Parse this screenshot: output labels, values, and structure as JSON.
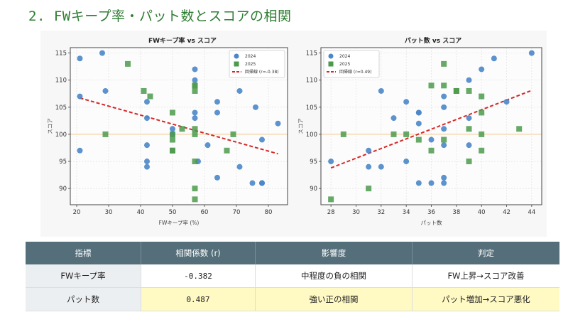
{
  "heading": "2. FWキープ率・パット数とスコアの相関",
  "chart_data": [
    {
      "type": "scatter",
      "title": "FWキープ率 vs スコア",
      "xlabel": "FWキープ率 (%)",
      "ylabel": "スコア",
      "xlim": [
        18,
        86
      ],
      "ylim": [
        87,
        116
      ],
      "xticks": [
        20,
        30,
        40,
        50,
        60,
        70,
        80
      ],
      "yticks": [
        90,
        95,
        100,
        105,
        110,
        115
      ],
      "grid": true,
      "reference_line_y": 100,
      "legend_position": "top-right",
      "series": [
        {
          "name": "2024",
          "marker": "circle",
          "color": "#4a86c8",
          "points": [
            [
              21,
              114
            ],
            [
              28,
              115
            ],
            [
              21,
              107
            ],
            [
              29,
              108
            ],
            [
              42,
              106
            ],
            [
              42,
              103
            ],
            [
              42,
              98
            ],
            [
              42,
              95
            ],
            [
              42,
              94
            ],
            [
              21,
              97
            ],
            [
              50,
              101
            ],
            [
              50,
              100
            ],
            [
              57,
              112
            ],
            [
              57,
              110
            ],
            [
              57,
              104
            ],
            [
              57,
              103
            ],
            [
              58,
              95
            ],
            [
              61,
              98
            ],
            [
              64,
              106
            ],
            [
              64,
              104
            ],
            [
              64,
              92
            ],
            [
              71,
              108
            ],
            [
              71,
              94
            ],
            [
              76,
              105
            ],
            [
              75,
              91
            ],
            [
              78,
              91
            ],
            [
              78,
              91
            ],
            [
              78,
              99
            ],
            [
              83,
              102
            ]
          ]
        },
        {
          "name": "2025",
          "marker": "square",
          "color": "#4c9a4c",
          "points": [
            [
              36,
              113
            ],
            [
              41,
              108
            ],
            [
              43,
              107
            ],
            [
              29,
              100
            ],
            [
              50,
              104
            ],
            [
              50,
              100
            ],
            [
              50,
              99
            ],
            [
              50,
              97
            ],
            [
              50,
              97
            ],
            [
              53,
              101
            ],
            [
              57,
              109
            ],
            [
              57,
              109
            ],
            [
              57,
              108
            ],
            [
              57,
              101
            ],
            [
              57,
              100
            ],
            [
              57,
              95
            ],
            [
              57,
              90
            ],
            [
              57,
              88
            ],
            [
              67,
              97
            ],
            [
              69,
              100
            ]
          ]
        }
      ],
      "regression": {
        "label": "回帰線 (r=-0.38)",
        "color": "#d62728",
        "x": [
          21,
          83
        ],
        "y": [
          106.7,
          96.4
        ]
      }
    },
    {
      "type": "scatter",
      "title": "パット数 vs スコア",
      "xlabel": "パット数",
      "ylabel": "スコア",
      "xlim": [
        27.2,
        44.8
      ],
      "ylim": [
        87,
        116
      ],
      "xticks": [
        28,
        30,
        32,
        34,
        36,
        38,
        40,
        42,
        44
      ],
      "yticks": [
        90,
        95,
        100,
        105,
        110,
        115
      ],
      "grid": true,
      "reference_line_y": 100,
      "legend_position": "top-left",
      "series": [
        {
          "name": "2024",
          "marker": "circle",
          "color": "#4a86c8",
          "points": [
            [
              28,
              95
            ],
            [
              31,
              97
            ],
            [
              31,
              94
            ],
            [
              32,
              94
            ],
            [
              32,
              108
            ],
            [
              33,
              103
            ],
            [
              34,
              106
            ],
            [
              34,
              95
            ],
            [
              35,
              104
            ],
            [
              35,
              104
            ],
            [
              35,
              102
            ],
            [
              35,
              91
            ],
            [
              36,
              99
            ],
            [
              36,
              91
            ],
            [
              37,
              107
            ],
            [
              37,
              105
            ],
            [
              37,
              101
            ],
            [
              37,
              98
            ],
            [
              37,
              92
            ],
            [
              37,
              91
            ],
            [
              39,
              110
            ],
            [
              39,
              103
            ],
            [
              39,
              98
            ],
            [
              40,
              112
            ],
            [
              41,
              114
            ],
            [
              42,
              106
            ],
            [
              44,
              115
            ]
          ]
        },
        {
          "name": "2025",
          "marker": "square",
          "color": "#4c9a4c",
          "points": [
            [
              28,
              88
            ],
            [
              29,
              100
            ],
            [
              31,
              90
            ],
            [
              33,
              100
            ],
            [
              34,
              100
            ],
            [
              35,
              99
            ],
            [
              36,
              109
            ],
            [
              36,
              97
            ],
            [
              37,
              113
            ],
            [
              37,
              109
            ],
            [
              37,
              99
            ],
            [
              38,
              108
            ],
            [
              38,
              108
            ],
            [
              39,
              108
            ],
            [
              39,
              101
            ],
            [
              39,
              95
            ],
            [
              40,
              107
            ],
            [
              40,
              104
            ],
            [
              40,
              100
            ],
            [
              40,
              97
            ],
            [
              43,
              101
            ]
          ]
        }
      ],
      "regression": {
        "label": "回帰線 (r=0.49)",
        "color": "#d62728",
        "x": [
          28,
          44
        ],
        "y": [
          93.8,
          108.1
        ]
      }
    }
  ],
  "table": {
    "headers": [
      "指標",
      "相関係数 (r)",
      "影響度",
      "判定"
    ],
    "rows": [
      {
        "metric": "FWキープ率",
        "r": "-0.382",
        "impact": "中程度の負の相関",
        "verdict": "FW上昇→スコア改善"
      },
      {
        "metric": "パット数",
        "r": "0.487",
        "impact": "強い正の相関",
        "verdict": "パット増加→スコア悪化"
      }
    ]
  },
  "colors": {
    "heading": "#2e7d32",
    "table_header": "#546e7a",
    "highlight": "#fff9c4",
    "strong_text": "#d32f2f",
    "reference_line": "#f5c98a"
  }
}
